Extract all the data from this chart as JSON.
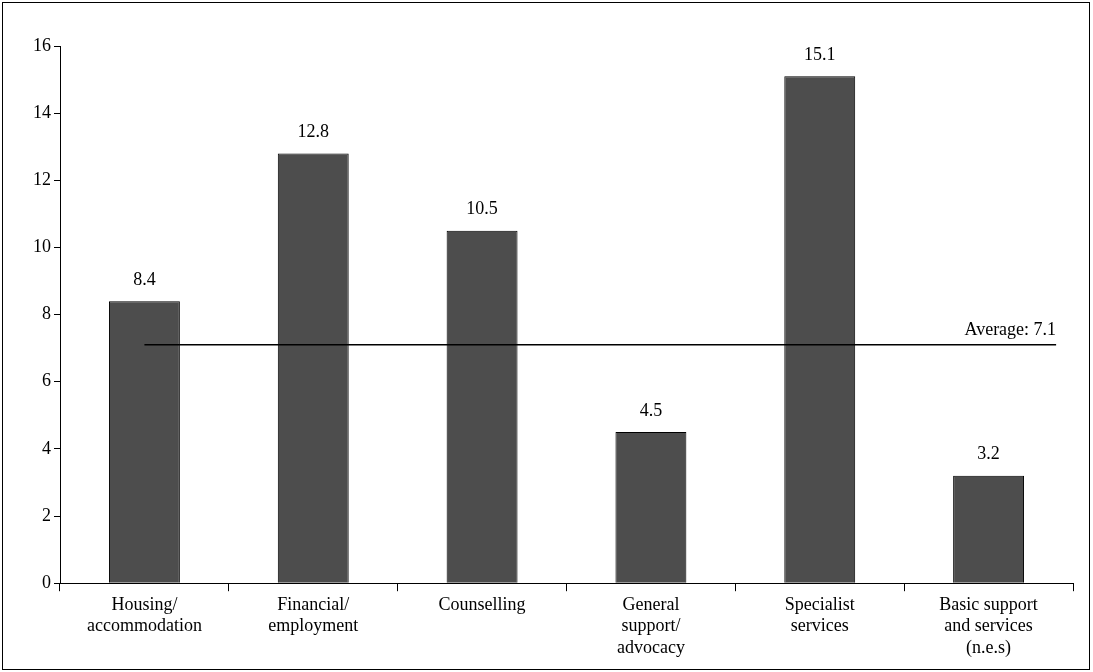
{
  "chart_data": {
    "type": "bar",
    "categories": [
      "Housing/ accommodation",
      "Financial/ employment",
      "Counselling",
      "General support/ advocacy",
      "Specialist services",
      "Basic support and services (n.e.s)"
    ],
    "values": [
      8.4,
      12.8,
      10.5,
      4.5,
      15.1,
      3.2
    ],
    "color": "#4d4d4d",
    "ylim": [
      0,
      16
    ],
    "yticks": [
      0,
      2,
      4,
      6,
      8,
      10,
      12,
      14,
      16
    ],
    "data_labels": true,
    "ref_lines": [
      {
        "axis": "y",
        "value": 7.1,
        "label": "Average: 7.1",
        "color": "#000000"
      }
    ],
    "legend": false
  }
}
